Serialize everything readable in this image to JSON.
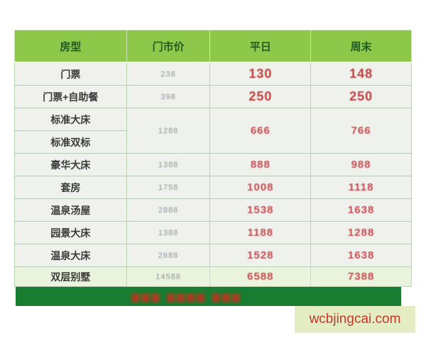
{
  "table": {
    "headers": [
      "房型",
      "门市价",
      "平日",
      "周末"
    ],
    "rows": [
      {
        "name": "门票",
        "list": "238",
        "weekday": "130",
        "weekend": "148"
      },
      {
        "name": "门票+自助餐",
        "list": "398",
        "weekday": "250",
        "weekend": "250"
      },
      {
        "name": "标准大床",
        "list": "1288",
        "weekday": "666",
        "weekend": "766"
      },
      {
        "name": "标准双标"
      },
      {
        "name": "豪华大床",
        "list": "1388",
        "weekday": "888",
        "weekend": "988"
      },
      {
        "name": "套房",
        "list": "1758",
        "weekday": "1008",
        "weekend": "1118"
      },
      {
        "name": "温泉汤屋",
        "list": "2888",
        "weekday": "1538",
        "weekend": "1638"
      },
      {
        "name": "园景大床",
        "list": "1388",
        "weekday": "1188",
        "weekend": "1288"
      },
      {
        "name": "温泉大床",
        "list": "2688",
        "weekday": "1528",
        "weekend": "1638"
      },
      {
        "name": "双层别墅",
        "list": "14588",
        "weekday": "6588",
        "weekend": "7388"
      }
    ]
  },
  "banner": {
    "blurred_text": "▆▆▆ ▆▆▆▆ ▆▆▆"
  },
  "watermark": {
    "text": "wcbjingcai.com"
  },
  "colors": {
    "header_green": "#8dc84b",
    "header_text": "#215c21",
    "price_red": "#c74a4f",
    "list_price_gray": "#8f9499",
    "banner_green": "#187c31",
    "watermark_bg": "#e3ecc2",
    "watermark_text": "#c0392b"
  }
}
